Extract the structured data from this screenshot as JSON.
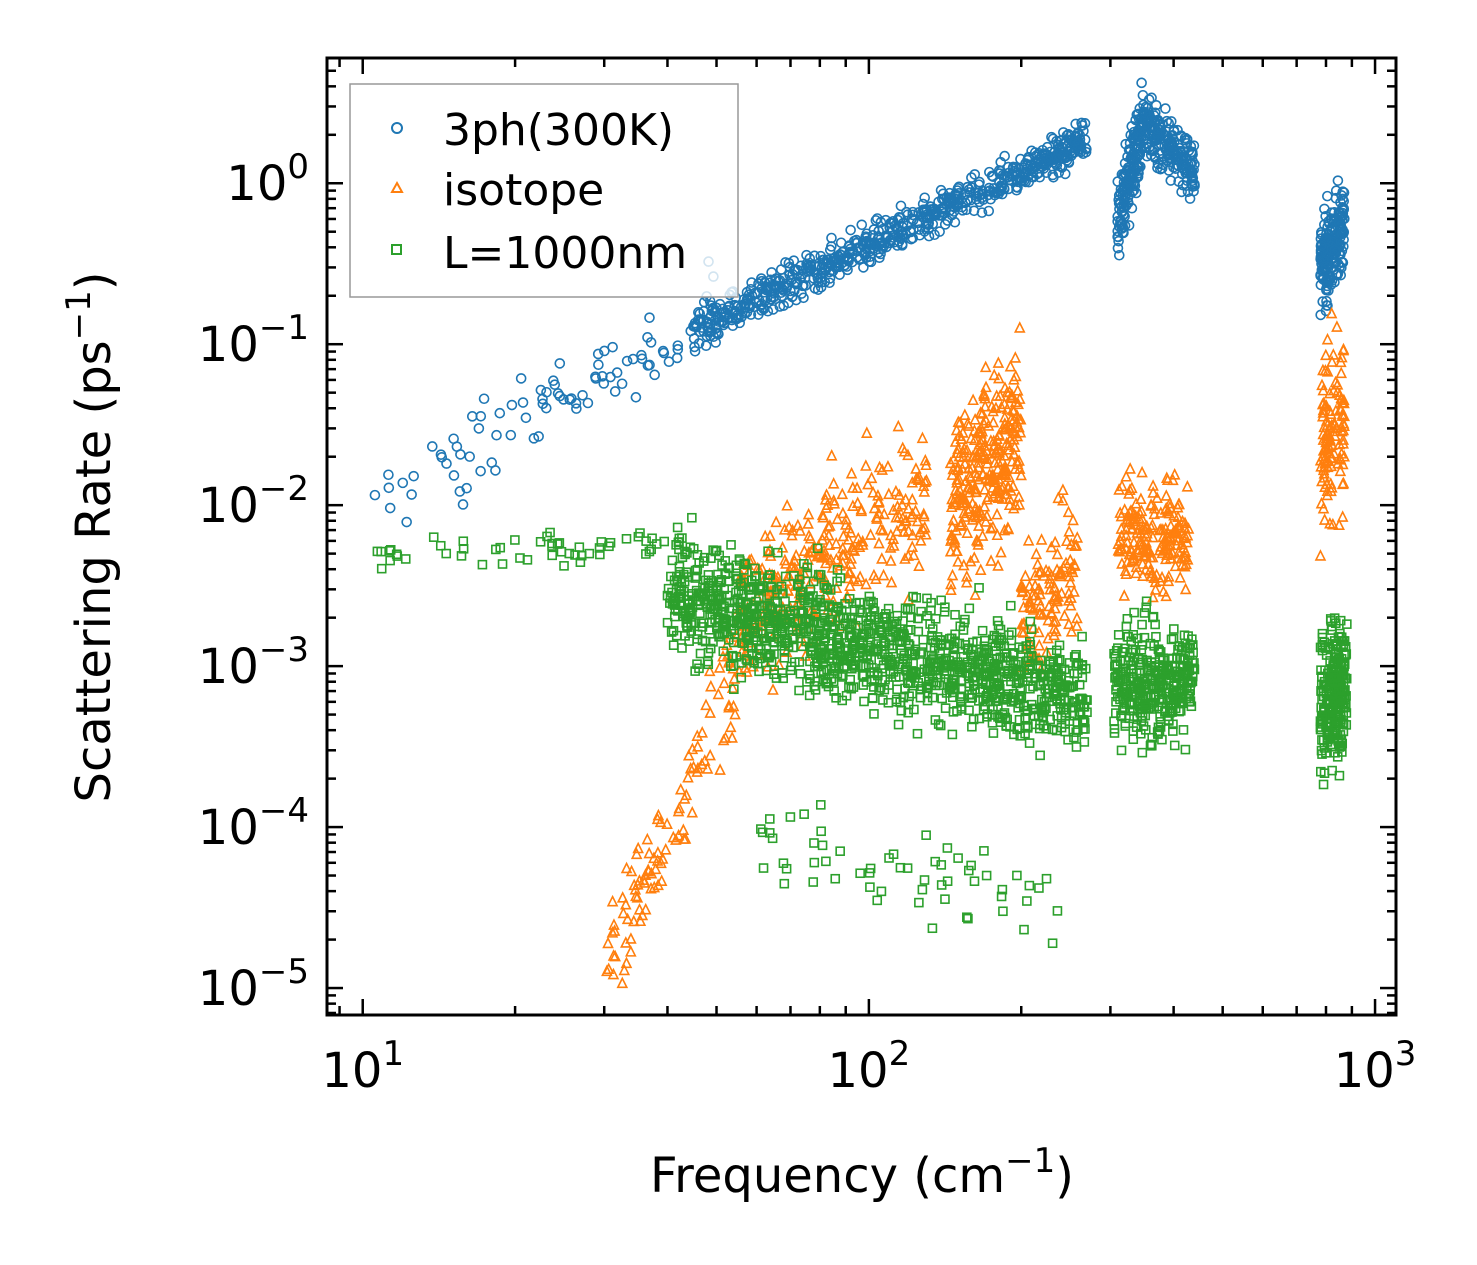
{
  "chart_data": {
    "type": "scatter",
    "xscale": "log",
    "yscale": "log",
    "xlim": [
      8.5,
      1100
    ],
    "ylim": [
      6.8e-06,
      6.0
    ],
    "xlabel": "Frequency (cm",
    "xlabel_sup": "−1",
    "xlabel_end": ")",
    "ylabel": "Scattering Rate (ps",
    "ylabel_sup": "−1",
    "ylabel_end": ")",
    "x_ticks": [
      {
        "value": 10,
        "base": "10",
        "exp": "1"
      },
      {
        "value": 100,
        "base": "10",
        "exp": "2"
      },
      {
        "value": 1000,
        "base": "10",
        "exp": "3"
      }
    ],
    "y_ticks": [
      {
        "value": 1,
        "base": "10",
        "exp": "0"
      },
      {
        "value": 0.1,
        "base": "10",
        "exp": "−1"
      },
      {
        "value": 0.01,
        "base": "10",
        "exp": "−2"
      },
      {
        "value": 0.001,
        "base": "10",
        "exp": "−3"
      },
      {
        "value": 0.0001,
        "base": "10",
        "exp": "−4"
      },
      {
        "value": 1e-05,
        "base": "10",
        "exp": "−5"
      }
    ],
    "legend_position": "top-left",
    "series": [
      {
        "name": "3ph(300K)",
        "color": "#1f77b4",
        "marker": "circle",
        "clusters": [
          {
            "x_range": [
              10.5,
              50
            ],
            "y_start": 0.009,
            "y_end": 0.18,
            "count": 90,
            "spread": 0.25
          },
          {
            "x_range": [
              45,
              270
            ],
            "y_start": 0.12,
            "y_end": 1.9,
            "count": 700,
            "spread": 0.12
          },
          {
            "x_range": [
              310,
              345
            ],
            "y_start": 0.6,
            "y_end": 2.0,
            "count": 150,
            "spread": 0.25
          },
          {
            "x_range": [
              345,
              440
            ],
            "y_start": 2.5,
            "y_end": 1.2,
            "count": 200,
            "spread": 0.2
          },
          {
            "x_range": [
              780,
              870
            ],
            "y_start": 0.3,
            "y_end": 0.55,
            "count": 200,
            "spread": 0.25
          }
        ]
      },
      {
        "name": "isotope",
        "color": "#ff7f0e",
        "marker": "triangle",
        "clusters": [
          {
            "x_range": [
              30,
              60
            ],
            "y_start": 1.2e-05,
            "y_end": 0.002,
            "count": 120,
            "spread": 0.35
          },
          {
            "x_range": [
              55,
              130
            ],
            "y_start": 0.002,
            "y_end": 0.011,
            "count": 300,
            "spread": 0.45
          },
          {
            "x_range": [
              145,
              200
            ],
            "y_start": 0.01,
            "y_end": 0.03,
            "count": 300,
            "spread": 0.55
          },
          {
            "x_range": [
              200,
              260
            ],
            "y_start": 0.002,
            "y_end": 0.004,
            "count": 120,
            "spread": 0.4
          },
          {
            "x_range": [
              310,
              430
            ],
            "y_start": 0.007,
            "y_end": 0.006,
            "count": 200,
            "spread": 0.35
          },
          {
            "x_range": [
              780,
              870
            ],
            "y_start": 0.02,
            "y_end": 0.04,
            "count": 120,
            "spread": 0.6
          }
        ]
      },
      {
        "name": "L=1000nm",
        "color": "#2ca02c",
        "marker": "square",
        "clusters": [
          {
            "x_range": [
              10.5,
              45
            ],
            "y_start": 0.0045,
            "y_end": 0.006,
            "count": 60,
            "spread": 0.1
          },
          {
            "x_range": [
              40,
              270
            ],
            "y_start": 0.0028,
            "y_end": 0.0006,
            "count": 1300,
            "spread": 0.35
          },
          {
            "x_range": [
              60,
              250
            ],
            "y_start": 8e-05,
            "y_end": 3e-05,
            "count": 60,
            "spread": 0.3
          },
          {
            "x_range": [
              305,
              440
            ],
            "y_start": 0.0008,
            "y_end": 0.0008,
            "count": 350,
            "spread": 0.35
          },
          {
            "x_range": [
              780,
              880
            ],
            "y_start": 0.0006,
            "y_end": 0.0008,
            "count": 250,
            "spread": 0.45
          }
        ]
      }
    ]
  }
}
